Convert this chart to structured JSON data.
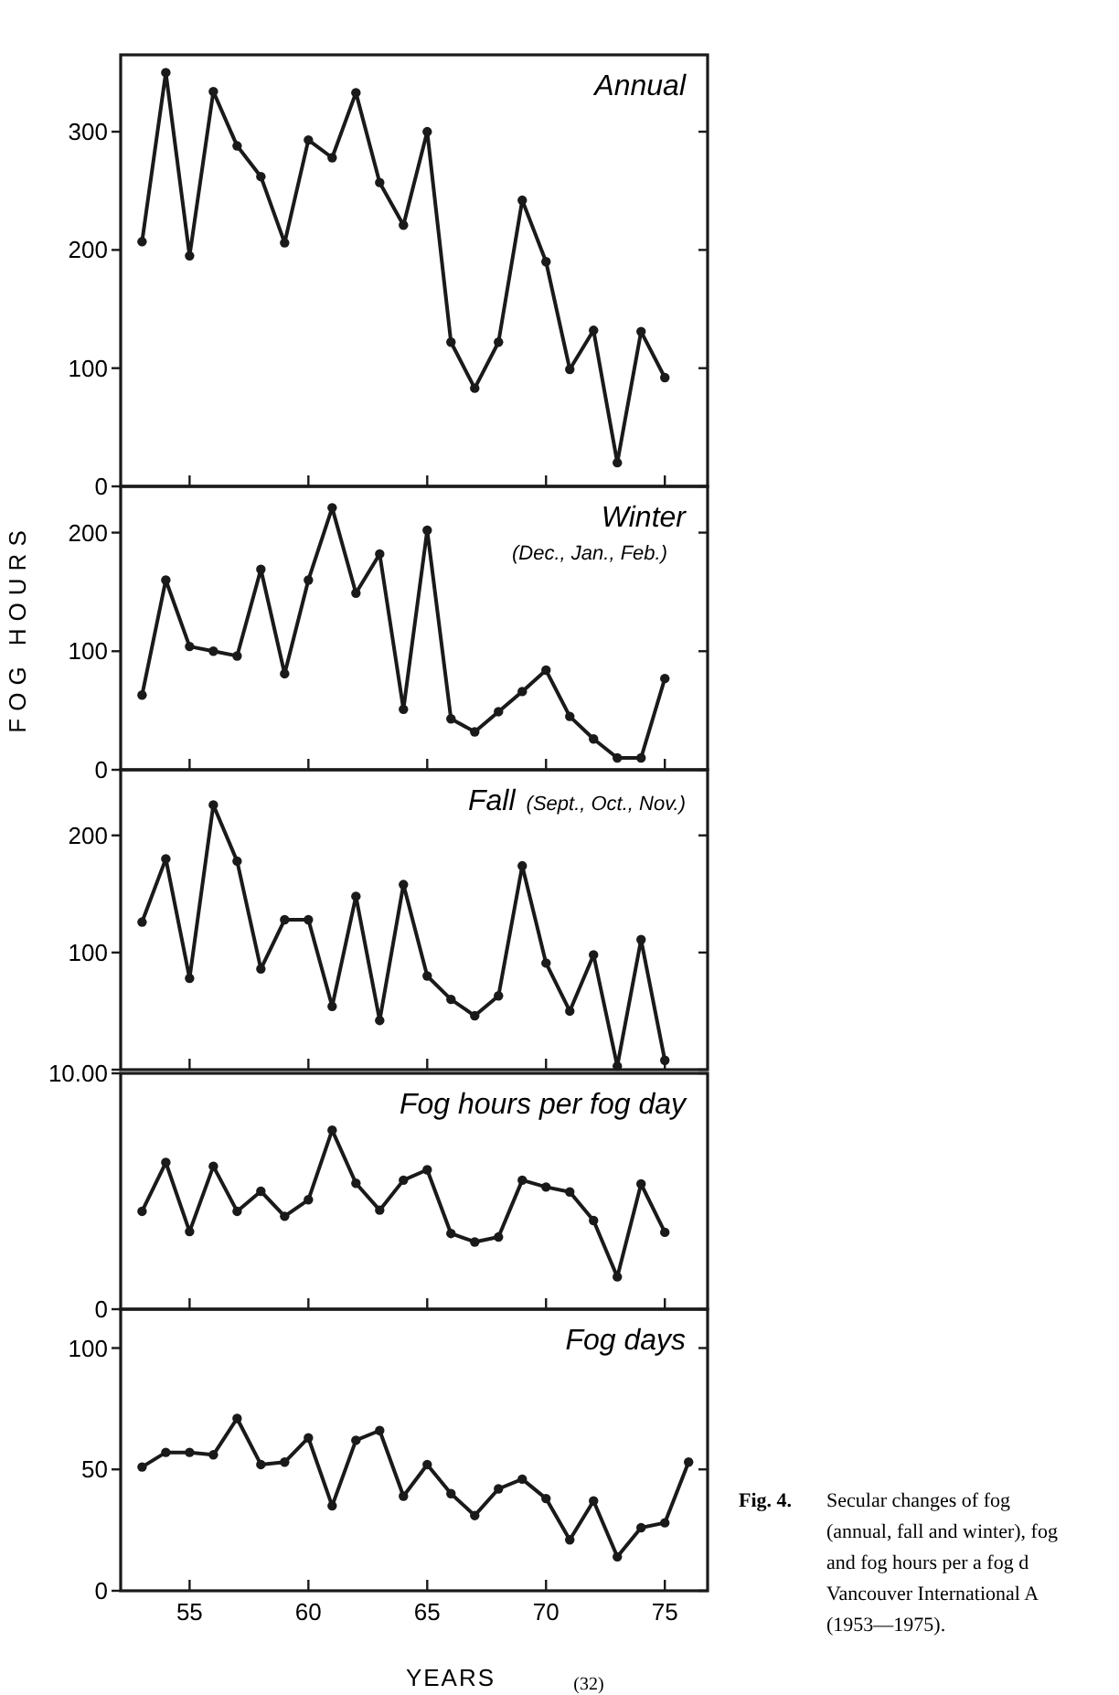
{
  "chart_data": [
    {
      "type": "line",
      "title": "Annual",
      "ylabel": null,
      "x": [
        53,
        54,
        55,
        56,
        57,
        58,
        59,
        60,
        61,
        62,
        63,
        64,
        65,
        66,
        67,
        68,
        69,
        70,
        71,
        72,
        73,
        74,
        75
      ],
      "values": [
        207,
        350,
        195,
        334,
        288,
        262,
        206,
        293,
        278,
        333,
        257,
        221,
        300,
        122,
        83,
        122,
        242,
        190,
        99,
        132,
        20,
        131,
        92
      ],
      "color": "#1a1a1a",
      "marker": "circle",
      "xlim": [
        52.1,
        76.8
      ],
      "xticks": [
        55,
        60,
        65,
        70,
        75
      ],
      "ylim": [
        0,
        365
      ],
      "yticks": [
        0,
        100,
        200,
        300
      ],
      "tick_labels": "y"
    },
    {
      "type": "line",
      "title": "Winter",
      "subtitle": "(Dec., Jan., Feb.)",
      "ylabel": "FOG HOURS",
      "x": [
        53,
        54,
        55,
        56,
        57,
        58,
        59,
        60,
        61,
        62,
        63,
        64,
        65,
        66,
        67,
        68,
        69,
        70,
        71,
        72,
        73,
        74,
        75
      ],
      "values": [
        63,
        160,
        104,
        100,
        96,
        169,
        81,
        160,
        221,
        149,
        182,
        51,
        202,
        43,
        32,
        49,
        66,
        84,
        45,
        26,
        10,
        10,
        77
      ],
      "color": "#1a1a1a",
      "marker": "circle",
      "xlim": [
        52.1,
        76.8
      ],
      "xticks": [
        55,
        60,
        65,
        70,
        75
      ],
      "ylim": [
        0,
        239
      ],
      "yticks": [
        0,
        100,
        200
      ],
      "tick_labels": "y"
    },
    {
      "type": "line",
      "title": "Fall",
      "subtitle": "(Sept., Oct., Nov.)",
      "x": [
        53,
        54,
        55,
        56,
        57,
        58,
        59,
        60,
        61,
        62,
        63,
        64,
        65,
        66,
        67,
        68,
        69,
        70,
        71,
        72,
        73,
        74,
        75
      ],
      "values": [
        126,
        180,
        78,
        226,
        178,
        86,
        128,
        128,
        54,
        148,
        42,
        158,
        80,
        60,
        46,
        63,
        174,
        91,
        50,
        98,
        3,
        111,
        8
      ],
      "color": "#1a1a1a",
      "marker": "circle",
      "xlim": [
        52.1,
        76.8
      ],
      "xticks": [
        55,
        60,
        65,
        70,
        75
      ],
      "ylim": [
        0,
        256
      ],
      "yticks": [
        {
          "value": 0,
          "label": null
        },
        100,
        200
      ],
      "tick_labels": "y"
    },
    {
      "type": "line",
      "title": "Fog hours per fog day",
      "x": [
        53,
        54,
        55,
        56,
        57,
        58,
        59,
        60,
        61,
        62,
        63,
        64,
        65,
        66,
        67,
        68,
        69,
        70,
        71,
        72,
        73,
        74,
        75
      ],
      "values": [
        4.15,
        6.22,
        3.29,
        6.06,
        4.15,
        5.0,
        3.94,
        4.64,
        7.59,
        5.34,
        4.2,
        5.47,
        5.91,
        3.21,
        2.85,
        3.06,
        5.47,
        5.18,
        4.97,
        3.76,
        1.37,
        5.31,
        3.26
      ],
      "color": "#1a1a1a",
      "marker": "circle",
      "xlim": [
        52.1,
        76.8
      ],
      "xticks": [
        55,
        60,
        65,
        70,
        75
      ],
      "ylim": [
        0,
        10
      ],
      "yticks": [
        0,
        {
          "value": 10,
          "label": "10.00"
        }
      ],
      "tick_labels": "y"
    },
    {
      "type": "line",
      "title": "Fog days",
      "xlabel": "YEARS",
      "x": [
        53,
        54,
        55,
        56,
        57,
        58,
        59,
        60,
        61,
        62,
        63,
        64,
        65,
        66,
        67,
        68,
        69,
        70,
        71,
        72,
        73,
        74,
        75,
        76
      ],
      "values": [
        51,
        57,
        57,
        56,
        71,
        52,
        53,
        63,
        35,
        62,
        66,
        39,
        52,
        40,
        31,
        42,
        46,
        38,
        21,
        37,
        14,
        26,
        28,
        53
      ],
      "color": "#1a1a1a",
      "marker": "circle",
      "xlim": [
        52.1,
        76.8
      ],
      "xticks": [
        55,
        60,
        65,
        70,
        75
      ],
      "ylim": [
        0,
        116
      ],
      "yticks": [
        0,
        50,
        100
      ],
      "annotations": [
        "Fig. 4.",
        "Secular changes of fog",
        "(annual, fall and winter), fog",
        "and fog hours per a fog d",
        "Vancouver International A",
        "(1953—1975).",
        "(32)"
      ]
    }
  ]
}
